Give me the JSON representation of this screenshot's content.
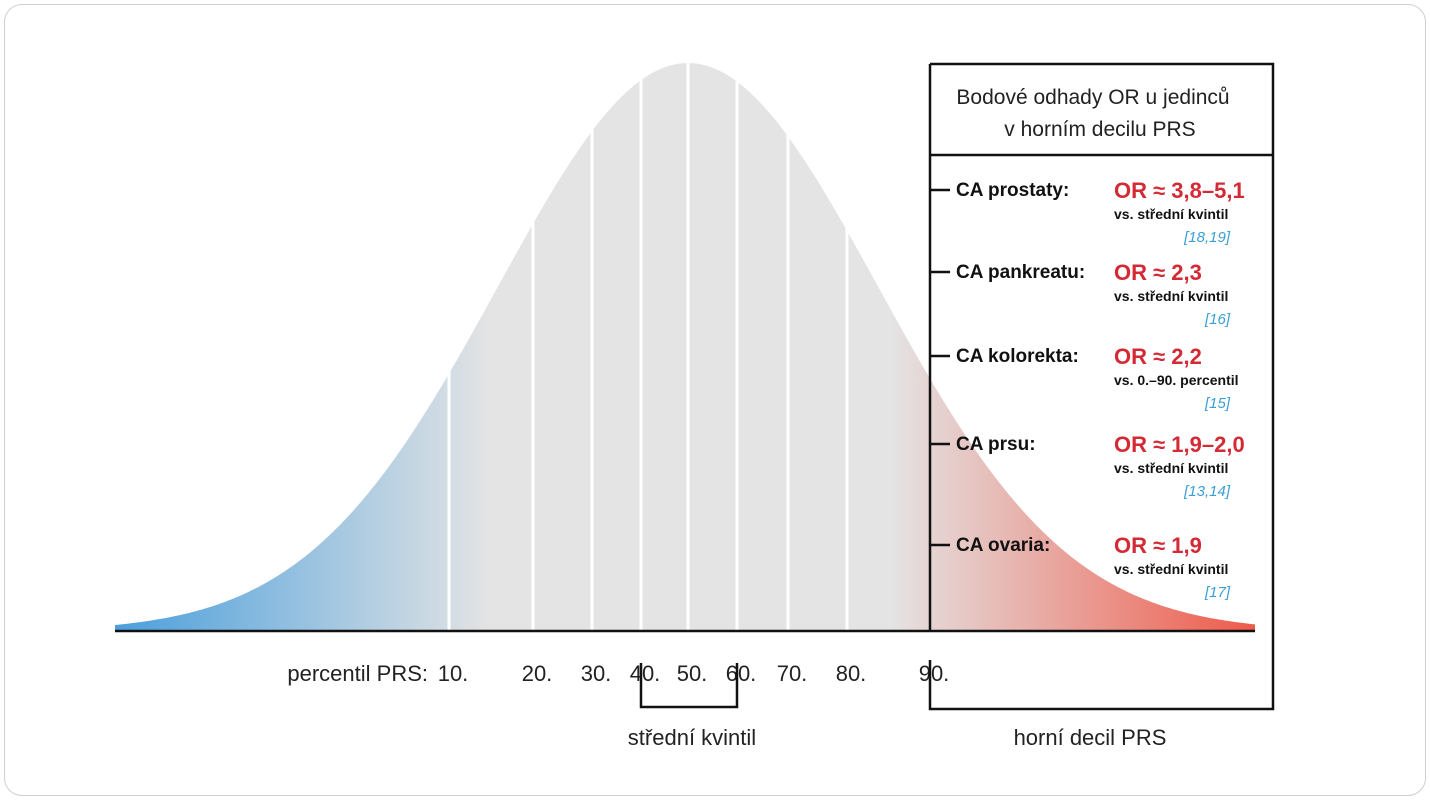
{
  "axis": {
    "label": "percentil PRS:",
    "ticks": [
      {
        "value": 10,
        "label": "10."
      },
      {
        "value": 20,
        "label": "20."
      },
      {
        "value": 30,
        "label": "30."
      },
      {
        "value": 40,
        "label": "40."
      },
      {
        "value": 50,
        "label": "50."
      },
      {
        "value": 60,
        "label": "60."
      },
      {
        "value": 70,
        "label": "70."
      },
      {
        "value": 80,
        "label": "80."
      },
      {
        "value": 90,
        "label": "90."
      }
    ]
  },
  "brackets": {
    "middle_quintile": "střední kvintil",
    "top_decile": "horní decil PRS"
  },
  "box": {
    "title_line1": "Bodové odhady OR u jedinců",
    "title_line2": "v horním decilu PRS"
  },
  "cancers": [
    {
      "name": "CA prostaty:",
      "or": "OR ≈ 3,8–5,1",
      "comparison": "vs. střední kvintil",
      "ref": "[18,19]"
    },
    {
      "name": "CA pankreatu:",
      "or": "OR ≈ 2,3",
      "comparison": "vs. střední kvintil",
      "ref": "[16]"
    },
    {
      "name": "CA kolorekta:",
      "or": "OR ≈ 2,2",
      "comparison": "vs. 0.–90. percentil",
      "ref": "[15]"
    },
    {
      "name": "CA prsu:",
      "or": "OR ≈ 1,9–2,0",
      "comparison": "vs. střední kvintil",
      "ref": "[13,14]"
    },
    {
      "name": "CA ovaria:",
      "or": "OR ≈ 1,9",
      "comparison": "vs. střední kvintil",
      "ref": "[17]"
    }
  ],
  "colors": {
    "low": "#4a9fdc",
    "mid": "#e4e4e4",
    "high": "#ee5a4a",
    "or_text": "#d42a35",
    "ref_text": "#3a9fd6"
  }
}
